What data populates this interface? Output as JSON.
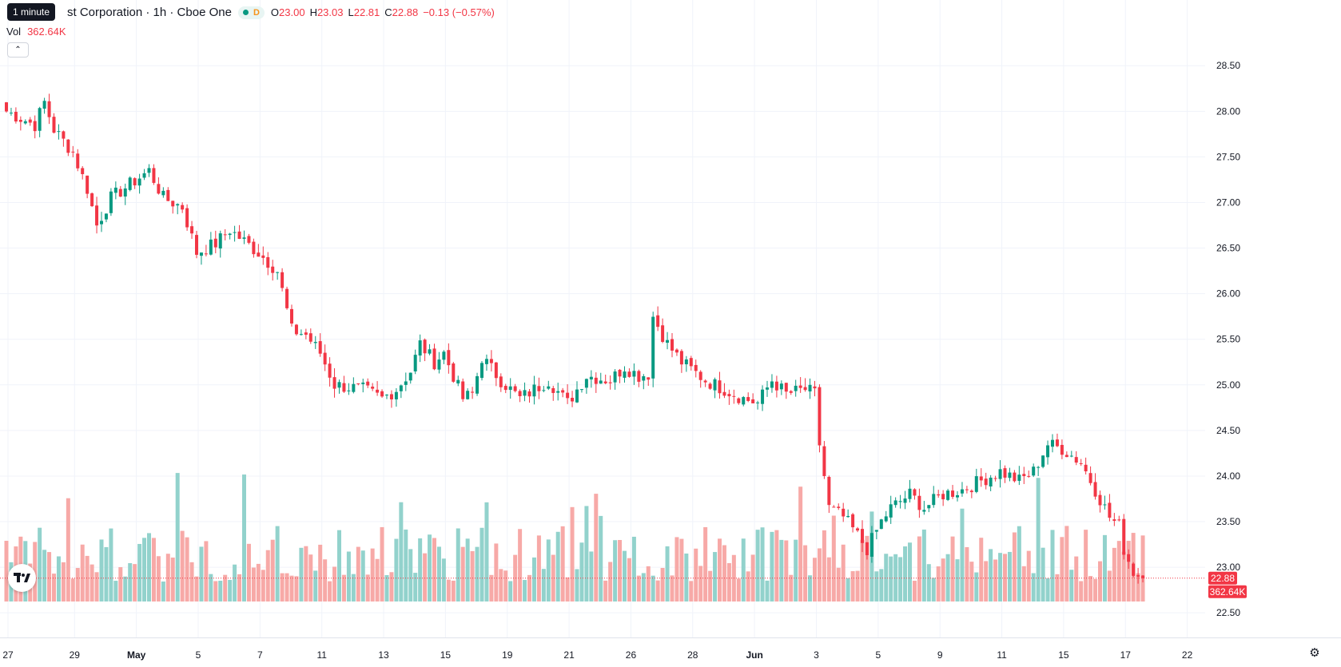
{
  "header": {
    "title": "st Corporation · 1h · Cboe One",
    "tooltip": "1 minute",
    "flag": "D",
    "ohlc": [
      {
        "key": "O",
        "value": "23.00"
      },
      {
        "key": "H",
        "value": "23.03"
      },
      {
        "key": "L",
        "value": "22.81"
      },
      {
        "key": "C",
        "value": "22.88"
      }
    ],
    "change": "−0.13 (−0.57%)",
    "vol_label": "Vol",
    "vol_value": "362.64K",
    "collapse_icon": "chevron-up-icon",
    "logo": "tradingview-logo",
    "settings_icon": "gear-icon"
  },
  "colors": {
    "up": "#089981",
    "down": "#f23645",
    "vol_up": "#92d2cc",
    "vol_down": "#f7a9a7",
    "grid": "#f0f3fa",
    "text": "#131722"
  },
  "chart_data": {
    "type": "candlestick",
    "interval": "1h",
    "y_ticks": [
      "28.50",
      "28.00",
      "27.50",
      "27.00",
      "26.50",
      "26.00",
      "25.50",
      "25.00",
      "24.50",
      "24.00",
      "23.50",
      "23.00",
      "22.50"
    ],
    "ylim": [
      22.3,
      28.8
    ],
    "x_ticks": [
      {
        "label": "27",
        "index": 0
      },
      {
        "label": "29",
        "index": 14
      },
      {
        "label": "May",
        "index": 27
      },
      {
        "label": "5",
        "index": 40
      },
      {
        "label": "7",
        "index": 53
      },
      {
        "label": "11",
        "index": 66
      },
      {
        "label": "13",
        "index": 79
      },
      {
        "label": "15",
        "index": 92
      },
      {
        "label": "19",
        "index": 105
      },
      {
        "label": "21",
        "index": 118
      },
      {
        "label": "26",
        "index": 131
      },
      {
        "label": "28",
        "index": 144
      },
      {
        "label": "Jun",
        "index": 157
      },
      {
        "label": "3",
        "index": 170
      },
      {
        "label": "5",
        "index": 183
      },
      {
        "label": "9",
        "index": 196
      },
      {
        "label": "11",
        "index": 209
      },
      {
        "label": "15",
        "index": 222
      },
      {
        "label": "17",
        "index": 235
      },
      {
        "label": "22",
        "index": 248
      }
    ],
    "last_price": "22.88",
    "last_volume": "362.64K",
    "anchors": [
      [
        0,
        28.0
      ],
      [
        6,
        27.85
      ],
      [
        8,
        28.1
      ],
      [
        10,
        27.8
      ],
      [
        14,
        27.55
      ],
      [
        17,
        27.15
      ],
      [
        19,
        26.75
      ],
      [
        22,
        27.05
      ],
      [
        26,
        27.2
      ],
      [
        30,
        27.35
      ],
      [
        33,
        27.05
      ],
      [
        37,
        26.95
      ],
      [
        40,
        26.45
      ],
      [
        44,
        26.55
      ],
      [
        47,
        26.7
      ],
      [
        53,
        26.45
      ],
      [
        57,
        26.25
      ],
      [
        60,
        25.6
      ],
      [
        63,
        25.55
      ],
      [
        66,
        25.35
      ],
      [
        69,
        25.0
      ],
      [
        75,
        24.95
      ],
      [
        79,
        24.85
      ],
      [
        82,
        24.95
      ],
      [
        85,
        25.15
      ],
      [
        87,
        25.45
      ],
      [
        90,
        25.25
      ],
      [
        92,
        25.35
      ],
      [
        96,
        24.85
      ],
      [
        98,
        24.9
      ],
      [
        100,
        25.3
      ],
      [
        104,
        25.05
      ],
      [
        108,
        24.85
      ],
      [
        111,
        24.95
      ],
      [
        114,
        25.05
      ],
      [
        118,
        24.8
      ],
      [
        122,
        25.1
      ],
      [
        127,
        25.05
      ],
      [
        130,
        25.2
      ],
      [
        133,
        25.1
      ],
      [
        135,
        25.12
      ],
      [
        136,
        25.75
      ],
      [
        139,
        25.45
      ],
      [
        142,
        25.25
      ],
      [
        147,
        25.05
      ],
      [
        151,
        24.95
      ],
      [
        155,
        24.85
      ],
      [
        158,
        24.8
      ],
      [
        161,
        25.05
      ],
      [
        164,
        24.9
      ],
      [
        168,
        24.95
      ],
      [
        170,
        24.9
      ],
      [
        171,
        24.35
      ],
      [
        173,
        23.65
      ],
      [
        176,
        23.55
      ],
      [
        179,
        23.35
      ],
      [
        181,
        23.2
      ],
      [
        184,
        23.5
      ],
      [
        186,
        23.65
      ],
      [
        190,
        23.8
      ],
      [
        193,
        23.65
      ],
      [
        197,
        23.8
      ],
      [
        201,
        23.85
      ],
      [
        205,
        23.95
      ],
      [
        209,
        24.05
      ],
      [
        213,
        23.95
      ],
      [
        216,
        24.05
      ],
      [
        219,
        24.35
      ],
      [
        222,
        24.3
      ],
      [
        226,
        24.15
      ],
      [
        229,
        23.85
      ],
      [
        232,
        23.55
      ],
      [
        234,
        23.45
      ],
      [
        235,
        23.2
      ],
      [
        237,
        22.95
      ],
      [
        239,
        22.88
      ]
    ]
  }
}
